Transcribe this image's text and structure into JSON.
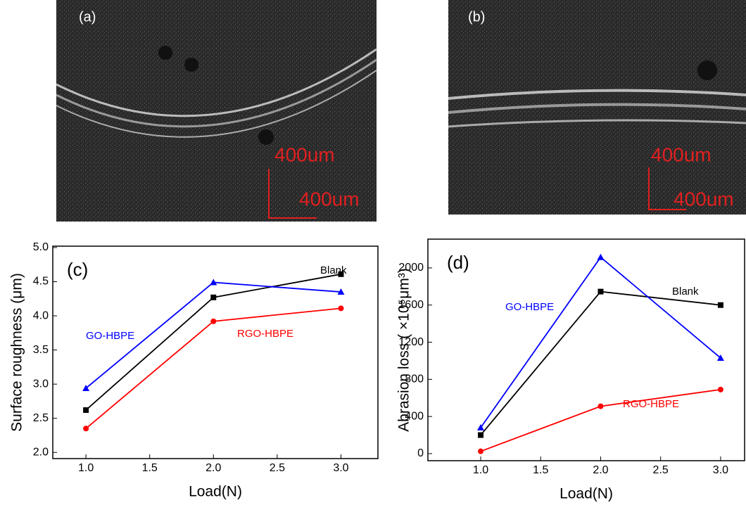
{
  "panels": [
    {
      "label": "(a)",
      "scale_labels": [
        "400um",
        "400um"
      ]
    },
    {
      "label": "(b)",
      "scale_labels": [
        "400um",
        "400um"
      ]
    }
  ],
  "chart_data": [
    {
      "type": "line",
      "panel_label": "(c)",
      "x_label": "Load(N)",
      "y_label": "Surface roughness (μm)",
      "x": [
        1,
        2,
        3
      ],
      "series": [
        {
          "name": "Blank",
          "color": "#000000",
          "marker": "square",
          "values": [
            2.62,
            4.27,
            4.61
          ]
        },
        {
          "name": "GO-HBPE",
          "color": "#0000ff",
          "marker": "triangle",
          "values": [
            2.94,
            4.49,
            4.35
          ]
        },
        {
          "name": "RGO-HBPE",
          "color": "#ff0000",
          "marker": "circle",
          "values": [
            2.35,
            3.92,
            4.11
          ]
        }
      ],
      "xlim": [
        0.74,
        3.29
      ],
      "xticks": [
        {
          "value": 1,
          "label": "1.0"
        },
        1.5,
        {
          "value": 2,
          "label": "2.0"
        },
        2.5,
        {
          "value": 3,
          "label": "3.0"
        }
      ],
      "ylim": [
        1.91,
        5.02
      ],
      "yticks": [
        {
          "value": 2,
          "label": "2.0"
        },
        2.5,
        {
          "value": 3,
          "label": "3.0"
        },
        3.5,
        {
          "value": 4,
          "label": "4.0"
        },
        4.5,
        {
          "value": 5,
          "label": "5.0"
        }
      ]
    },
    {
      "type": "line",
      "panel_label": "(d)",
      "x_label": "Load(N)",
      "y_label": "Abrasion loss ( ×10⁵μm³)",
      "x": [
        1,
        2,
        3
      ],
      "series": [
        {
          "name": "Blank",
          "color": "#000000",
          "marker": "square",
          "values": [
            200,
            1745,
            1600
          ]
        },
        {
          "name": "GO-HBPE",
          "color": "#0000ff",
          "marker": "triangle",
          "values": [
            280,
            2115,
            1030
          ]
        },
        {
          "name": "RGO-HBPE",
          "color": "#ff0000",
          "marker": "circle",
          "values": [
            25,
            510,
            690
          ]
        }
      ],
      "xlim": [
        0.56,
        3.2
      ],
      "xticks": [
        {
          "value": 1,
          "label": "1.0"
        },
        1.5,
        {
          "value": 2,
          "label": "2.0"
        },
        2.5,
        {
          "value": 3,
          "label": "3.0"
        }
      ],
      "ylim": [
        -76,
        2310
      ],
      "yticks": [
        0,
        400,
        800,
        1200,
        1600,
        2000
      ]
    }
  ]
}
